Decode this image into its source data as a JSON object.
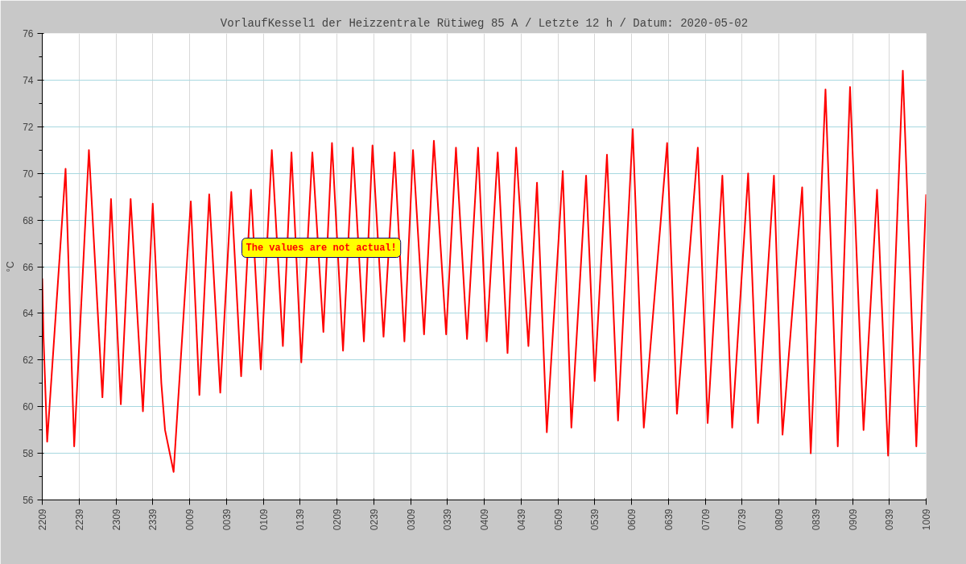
{
  "chart_data": {
    "type": "line",
    "title": "VorlaufKessel1 der Heizzentrale Rütiweg 85 A / Letzte 12 h / Datum: 2020-05-02",
    "ylabel": "°C",
    "annotations": [
      "The values are not actual!"
    ],
    "x": [
      "2020-05-01T22:09",
      "2020-05-01T22:10",
      "2020-05-01T22:13",
      "2020-05-01T22:28",
      "2020-05-01T22:35",
      "2020-05-01T22:47",
      "2020-05-01T22:58",
      "2020-05-01T23:05",
      "2020-05-01T23:13",
      "2020-05-01T23:21",
      "2020-05-01T23:31",
      "2020-05-01T23:39",
      "2020-05-01T23:46",
      "2020-05-01T23:49",
      "2020-05-01T23:56",
      "2020-05-02T00:10",
      "2020-05-02T00:17",
      "2020-05-02T00:25",
      "2020-05-02T00:34",
      "2020-05-02T00:43",
      "2020-05-02T00:51",
      "2020-05-02T00:59",
      "2020-05-02T01:07",
      "2020-05-02T01:16",
      "2020-05-02T01:25",
      "2020-05-02T01:32",
      "2020-05-02T01:40",
      "2020-05-02T01:49",
      "2020-05-02T01:58",
      "2020-05-02T02:05",
      "2020-05-02T02:14",
      "2020-05-02T02:22",
      "2020-05-02T02:31",
      "2020-05-02T02:38",
      "2020-05-02T02:47",
      "2020-05-02T02:56",
      "2020-05-02T03:04",
      "2020-05-02T03:11",
      "2020-05-02T03:20",
      "2020-05-02T03:28",
      "2020-05-02T03:38",
      "2020-05-02T03:46",
      "2020-05-02T03:55",
      "2020-05-02T04:04",
      "2020-05-02T04:11",
      "2020-05-02T04:20",
      "2020-05-02T04:28",
      "2020-05-02T04:35",
      "2020-05-02T04:45",
      "2020-05-02T04:52",
      "2020-05-02T05:00",
      "2020-05-02T05:13",
      "2020-05-02T05:20",
      "2020-05-02T05:32",
      "2020-05-02T05:39",
      "2020-05-02T05:49",
      "2020-05-02T05:58",
      "2020-05-02T06:10",
      "2020-05-02T06:19",
      "2020-05-02T06:38",
      "2020-05-02T06:46",
      "2020-05-02T07:03",
      "2020-05-02T07:11",
      "2020-05-02T07:23",
      "2020-05-02T07:31",
      "2020-05-02T07:44",
      "2020-05-02T07:52",
      "2020-05-02T08:05",
      "2020-05-02T08:12",
      "2020-05-02T08:28",
      "2020-05-02T08:35",
      "2020-05-02T08:47",
      "2020-05-02T08:57",
      "2020-05-02T09:07",
      "2020-05-02T09:18",
      "2020-05-02T09:29",
      "2020-05-02T09:38",
      "2020-05-02T09:50",
      "2020-05-02T10:01",
      "2020-05-02T10:09"
    ],
    "series": [
      {
        "color": "#ff0000",
        "values": [
          65.5,
          63.0,
          58.5,
          70.2,
          58.3,
          71.0,
          60.4,
          68.9,
          60.1,
          68.9,
          59.8,
          68.7,
          61.0,
          59.0,
          57.2,
          68.8,
          60.5,
          69.1,
          60.6,
          69.2,
          61.3,
          69.3,
          61.6,
          71.0,
          62.6,
          70.9,
          61.9,
          70.9,
          63.2,
          71.3,
          62.4,
          71.1,
          62.8,
          71.2,
          63.0,
          70.9,
          62.8,
          71.0,
          63.1,
          71.4,
          63.1,
          71.1,
          62.9,
          71.1,
          62.8,
          70.9,
          62.3,
          71.1,
          62.6,
          69.6,
          58.9,
          70.1,
          59.1,
          69.9,
          61.1,
          70.8,
          59.4,
          71.9,
          59.1,
          71.3,
          59.7,
          71.1,
          59.3,
          69.9,
          59.1,
          70.0,
          59.3,
          69.9,
          58.8,
          69.4,
          58.0,
          73.6,
          58.3,
          73.7,
          59.0,
          69.3,
          57.9,
          74.4,
          58.3,
          69.1
        ]
      }
    ],
    "xlim": [
      "2020-05-01T22:09",
      "2020-05-02T10:09"
    ],
    "xticks": [
      {
        "value": "2020-05-01T22:09",
        "label": "2209"
      },
      {
        "value": "2020-05-01T22:39",
        "label": "2239"
      },
      {
        "value": "2020-05-01T23:09",
        "label": "2309"
      },
      {
        "value": "2020-05-01T23:39",
        "label": "2339"
      },
      {
        "value": "2020-05-02T00:09",
        "label": "0009"
      },
      {
        "value": "2020-05-02T00:39",
        "label": "0039"
      },
      {
        "value": "2020-05-02T01:09",
        "label": "0109"
      },
      {
        "value": "2020-05-02T01:39",
        "label": "0139"
      },
      {
        "value": "2020-05-02T02:09",
        "label": "0209"
      },
      {
        "value": "2020-05-02T02:39",
        "label": "0239"
      },
      {
        "value": "2020-05-02T03:09",
        "label": "0309"
      },
      {
        "value": "2020-05-02T03:39",
        "label": "0339"
      },
      {
        "value": "2020-05-02T04:09",
        "label": "0409"
      },
      {
        "value": "2020-05-02T04:39",
        "label": "0439"
      },
      {
        "value": "2020-05-02T05:09",
        "label": "0509"
      },
      {
        "value": "2020-05-02T05:39",
        "label": "0539"
      },
      {
        "value": "2020-05-02T06:09",
        "label": "0609"
      },
      {
        "value": "2020-05-02T06:39",
        "label": "0639"
      },
      {
        "value": "2020-05-02T07:09",
        "label": "0709"
      },
      {
        "value": "2020-05-02T07:39",
        "label": "0739"
      },
      {
        "value": "2020-05-02T08:09",
        "label": "0809"
      },
      {
        "value": "2020-05-02T08:39",
        "label": "0839"
      },
      {
        "value": "2020-05-02T09:09",
        "label": "0909"
      },
      {
        "value": "2020-05-02T09:39",
        "label": "0939"
      },
      {
        "value": "2020-05-02T10:09",
        "label": "1009"
      }
    ],
    "ylim": [
      56,
      76
    ],
    "yticks": [
      56,
      58,
      60,
      62,
      64,
      66,
      68,
      70,
      72,
      74,
      76
    ],
    "grid": true,
    "line_style": "solid",
    "marker": "none"
  }
}
